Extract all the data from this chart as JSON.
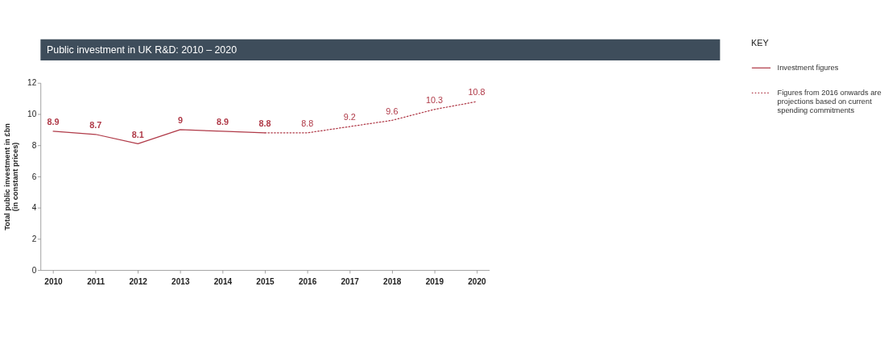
{
  "chart_data": {
    "type": "line",
    "title": "Public investment in UK R&D: 2010 – 2020",
    "ylabel": "Total public investment in £bn\n(in constant prices)",
    "legend_title": "KEY",
    "legend": "right",
    "categories": [
      "2010",
      "2011",
      "2012",
      "2013",
      "2014",
      "2015",
      "2016",
      "2017",
      "2018",
      "2019",
      "2020"
    ],
    "series": [
      {
        "name": "Investment figures",
        "color": "#b03a48",
        "line_style": "solid",
        "values": [
          8.9,
          8.7,
          8.1,
          9,
          8.9,
          8.8,
          null,
          null,
          null,
          null,
          null
        ],
        "value_labels": [
          "8.9",
          "8.7",
          "8.1",
          "9",
          "8.9",
          "8.8",
          null,
          null,
          null,
          null,
          null
        ]
      },
      {
        "name": "Figures from 2016 onwards are projections based on current spending commitments",
        "color": "#b03a48",
        "line_style": "dotted",
        "values": [
          null,
          null,
          null,
          null,
          null,
          8.8,
          8.8,
          9.2,
          9.6,
          10.3,
          10.8
        ],
        "value_labels": [
          null,
          null,
          null,
          null,
          null,
          null,
          "8.8",
          "9.2",
          "9.6",
          "10.3",
          "10.8"
        ]
      }
    ],
    "ylim": [
      0,
      12
    ],
    "yticks": [
      0,
      2,
      4,
      6,
      8,
      10,
      12
    ],
    "grid": false
  }
}
